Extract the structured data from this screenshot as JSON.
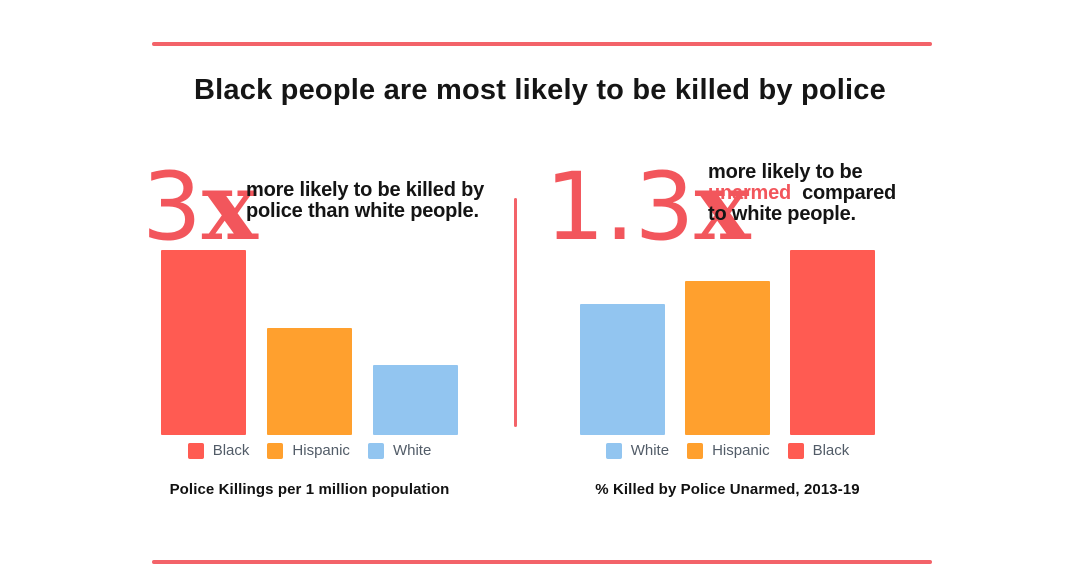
{
  "theme": {
    "accent_color": "#F2565C",
    "bar_red": "#FF5B52",
    "bar_orange": "#FFA02E",
    "bar_blue": "#92C5F0",
    "title_color": "#151515",
    "legend_text_color": "#525C68"
  },
  "header": {
    "title": "Black people are most likely to be killed by police"
  },
  "chart_data": [
    {
      "type": "bar",
      "panel": "left",
      "title": "Police Killings per 1 million population",
      "categories": [
        "Black",
        "Hispanic",
        "White"
      ],
      "values": [
        1.0,
        0.58,
        0.38
      ],
      "value_basis": "relative bar heights (no axis or gridlines shown); Black is about 3x White",
      "colors": [
        "#FF5B52",
        "#FFA02E",
        "#92C5F0"
      ],
      "legend_position": "bottom",
      "grid": false,
      "callout": {
        "number": "3",
        "suffix": "x",
        "line1": "more likely to be killed by",
        "line2": "police than white people."
      }
    },
    {
      "type": "bar",
      "panel": "right",
      "title": "% Killed by Police Unarmed, 2013-19",
      "categories": [
        "White",
        "Hispanic",
        "Black"
      ],
      "values": [
        0.71,
        0.83,
        1.0
      ],
      "value_basis": "relative bar heights (no axis or gridlines shown); Black is about 1.3x White",
      "colors": [
        "#92C5F0",
        "#FFA02E",
        "#FF5B52"
      ],
      "legend_position": "bottom",
      "grid": false,
      "callout": {
        "number": "1.3",
        "suffix": "x",
        "line1": "more likely to be",
        "highlight": "unarmed",
        "line2_rest": "compared",
        "line3": "to white people."
      }
    }
  ]
}
